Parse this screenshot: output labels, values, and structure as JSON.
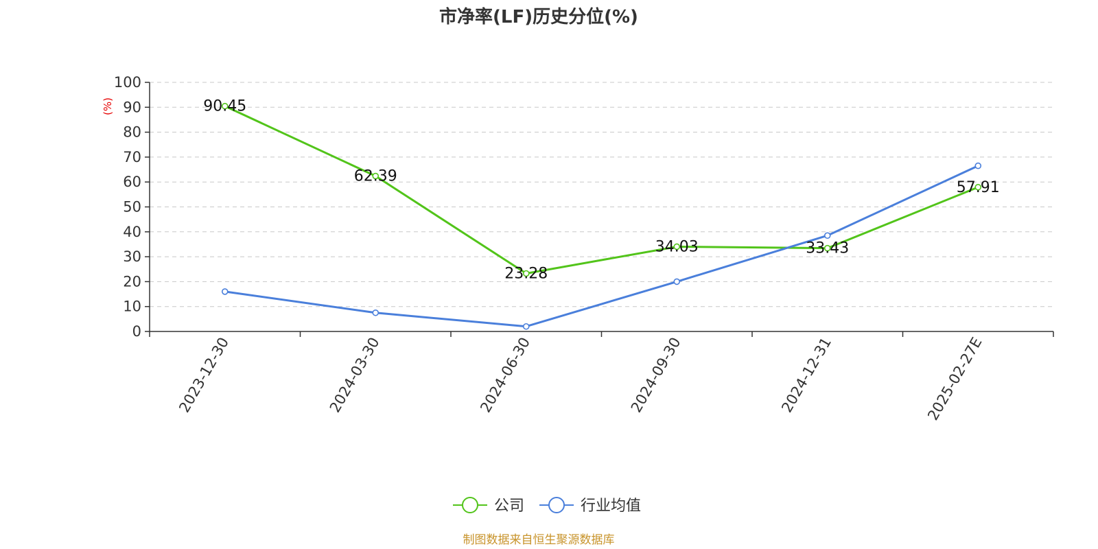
{
  "chart_data": {
    "type": "line",
    "title": "市净率(LF)历史分位(%)",
    "y_unit": "(%)",
    "ylim": [
      0,
      100
    ],
    "yticks": [
      0,
      10,
      20,
      30,
      40,
      50,
      60,
      70,
      80,
      90,
      100
    ],
    "categories": [
      "2023-12-30",
      "2024-03-30",
      "2024-06-30",
      "2024-09-30",
      "2024-12-31",
      "2025-02-27E"
    ],
    "grid": true,
    "legend_position": "bottom",
    "series": [
      {
        "name": "公司",
        "color": "#52c41a",
        "values": [
          90.45,
          62.39,
          23.28,
          34.03,
          33.43,
          57.91
        ],
        "show_labels": true
      },
      {
        "name": "行业均值",
        "color": "#4a7fdb",
        "values": [
          16.0,
          7.5,
          2.0,
          20.0,
          38.5,
          66.5
        ],
        "show_labels": false
      }
    ],
    "source_note": "制图数据来自恒生聚源数据库"
  }
}
